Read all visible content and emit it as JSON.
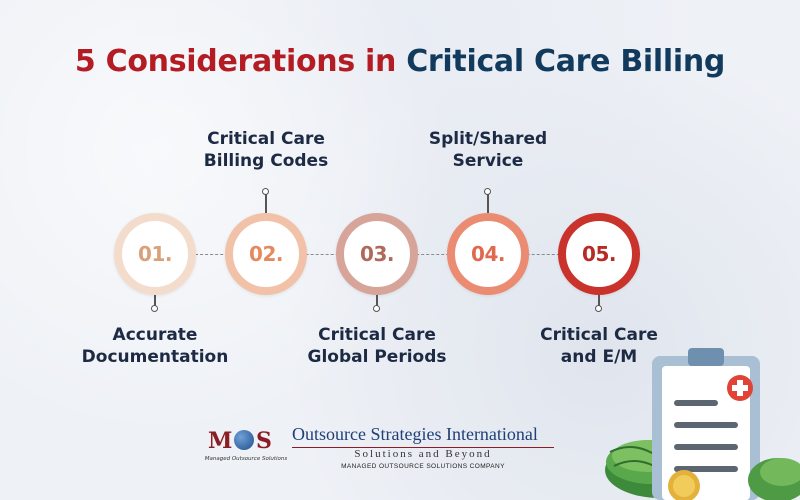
{
  "title": {
    "part1": "5 Considerations in",
    "part2": "Critical Care Billing",
    "color1": "#b31c23",
    "color2": "#123a5c"
  },
  "steps": [
    {
      "number": "01.",
      "label_line1": "Accurate",
      "label_line2": "Documentation",
      "position": "below",
      "ring_color": "#f3dccc",
      "number_color": "#d9a07a"
    },
    {
      "number": "02.",
      "label_line1": "Critical Care",
      "label_line2": "Billing Codes",
      "position": "above",
      "ring_color": "#f2c2a8",
      "number_color": "#e58a5e"
    },
    {
      "number": "03.",
      "label_line1": "Critical Care",
      "label_line2": "Global Periods",
      "position": "below",
      "ring_color": "#d7a49a",
      "number_color": "#b06a5c"
    },
    {
      "number": "04.",
      "label_line1": "Split/Shared",
      "label_line2": "Service",
      "position": "above",
      "ring_color": "#ea8b72",
      "number_color": "#e06a4e"
    },
    {
      "number": "05.",
      "label_line1": "Critical Care",
      "label_line2": "and E/M",
      "position": "below",
      "ring_color": "#c9332c",
      "number_color": "#b82a24"
    }
  ],
  "logo": {
    "mark_letter_1": "M",
    "mark_letter_2": "S",
    "mark_caption": "Managed Outsource Solutions",
    "company_name": "Outsource Strategies International",
    "tagline": "Solutions and Beyond",
    "subtagline": "MANAGED OUTSOURCE SOLUTIONS COMPANY"
  },
  "illustration": {
    "icons": [
      "clipboard-icon",
      "medical-cross-icon",
      "money-stack-icon",
      "coin-icon"
    ]
  }
}
